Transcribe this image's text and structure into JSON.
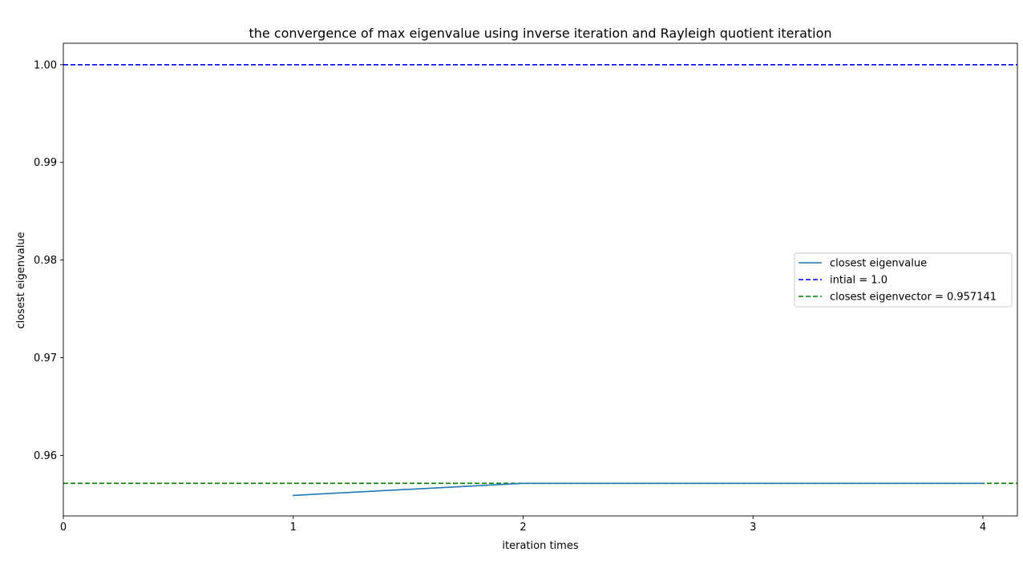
{
  "chart_data": {
    "type": "line",
    "title": "the convergence of max eigenvalue using inverse iteration and Rayleigh quotient iteration",
    "xlabel": "iteration times",
    "ylabel": "closest eigenvalue",
    "xlim": [
      0,
      4.15
    ],
    "ylim": [
      0.9538,
      1.0022
    ],
    "x_ticks": [
      0,
      1,
      2,
      3,
      4
    ],
    "y_ticks": [
      0.96,
      0.97,
      0.98,
      0.99,
      1.0
    ],
    "x_tick_labels": [
      "0",
      "1",
      "2",
      "3",
      "4"
    ],
    "y_tick_labels": [
      "0.96",
      "0.97",
      "0.98",
      "0.99",
      "1.00"
    ],
    "series": [
      {
        "name": "closest eigenvalue",
        "style": "solid",
        "color": "#1f77b4",
        "x": [
          1,
          2,
          3,
          4
        ],
        "y": [
          0.9559,
          0.957141,
          0.957141,
          0.957141
        ]
      }
    ],
    "hlines": [
      {
        "name": "intial = 1.0",
        "y": 1.0,
        "style": "dashed",
        "color": "#0000ff"
      },
      {
        "name": "closest eigenvector = 0.957141",
        "y": 0.957141,
        "style": "dashed",
        "color": "#008000"
      }
    ],
    "legend": {
      "position": "center-right",
      "entries": [
        "closest eigenvalue",
        "intial = 1.0",
        "closest eigenvector = 0.957141"
      ]
    },
    "grid": false
  }
}
